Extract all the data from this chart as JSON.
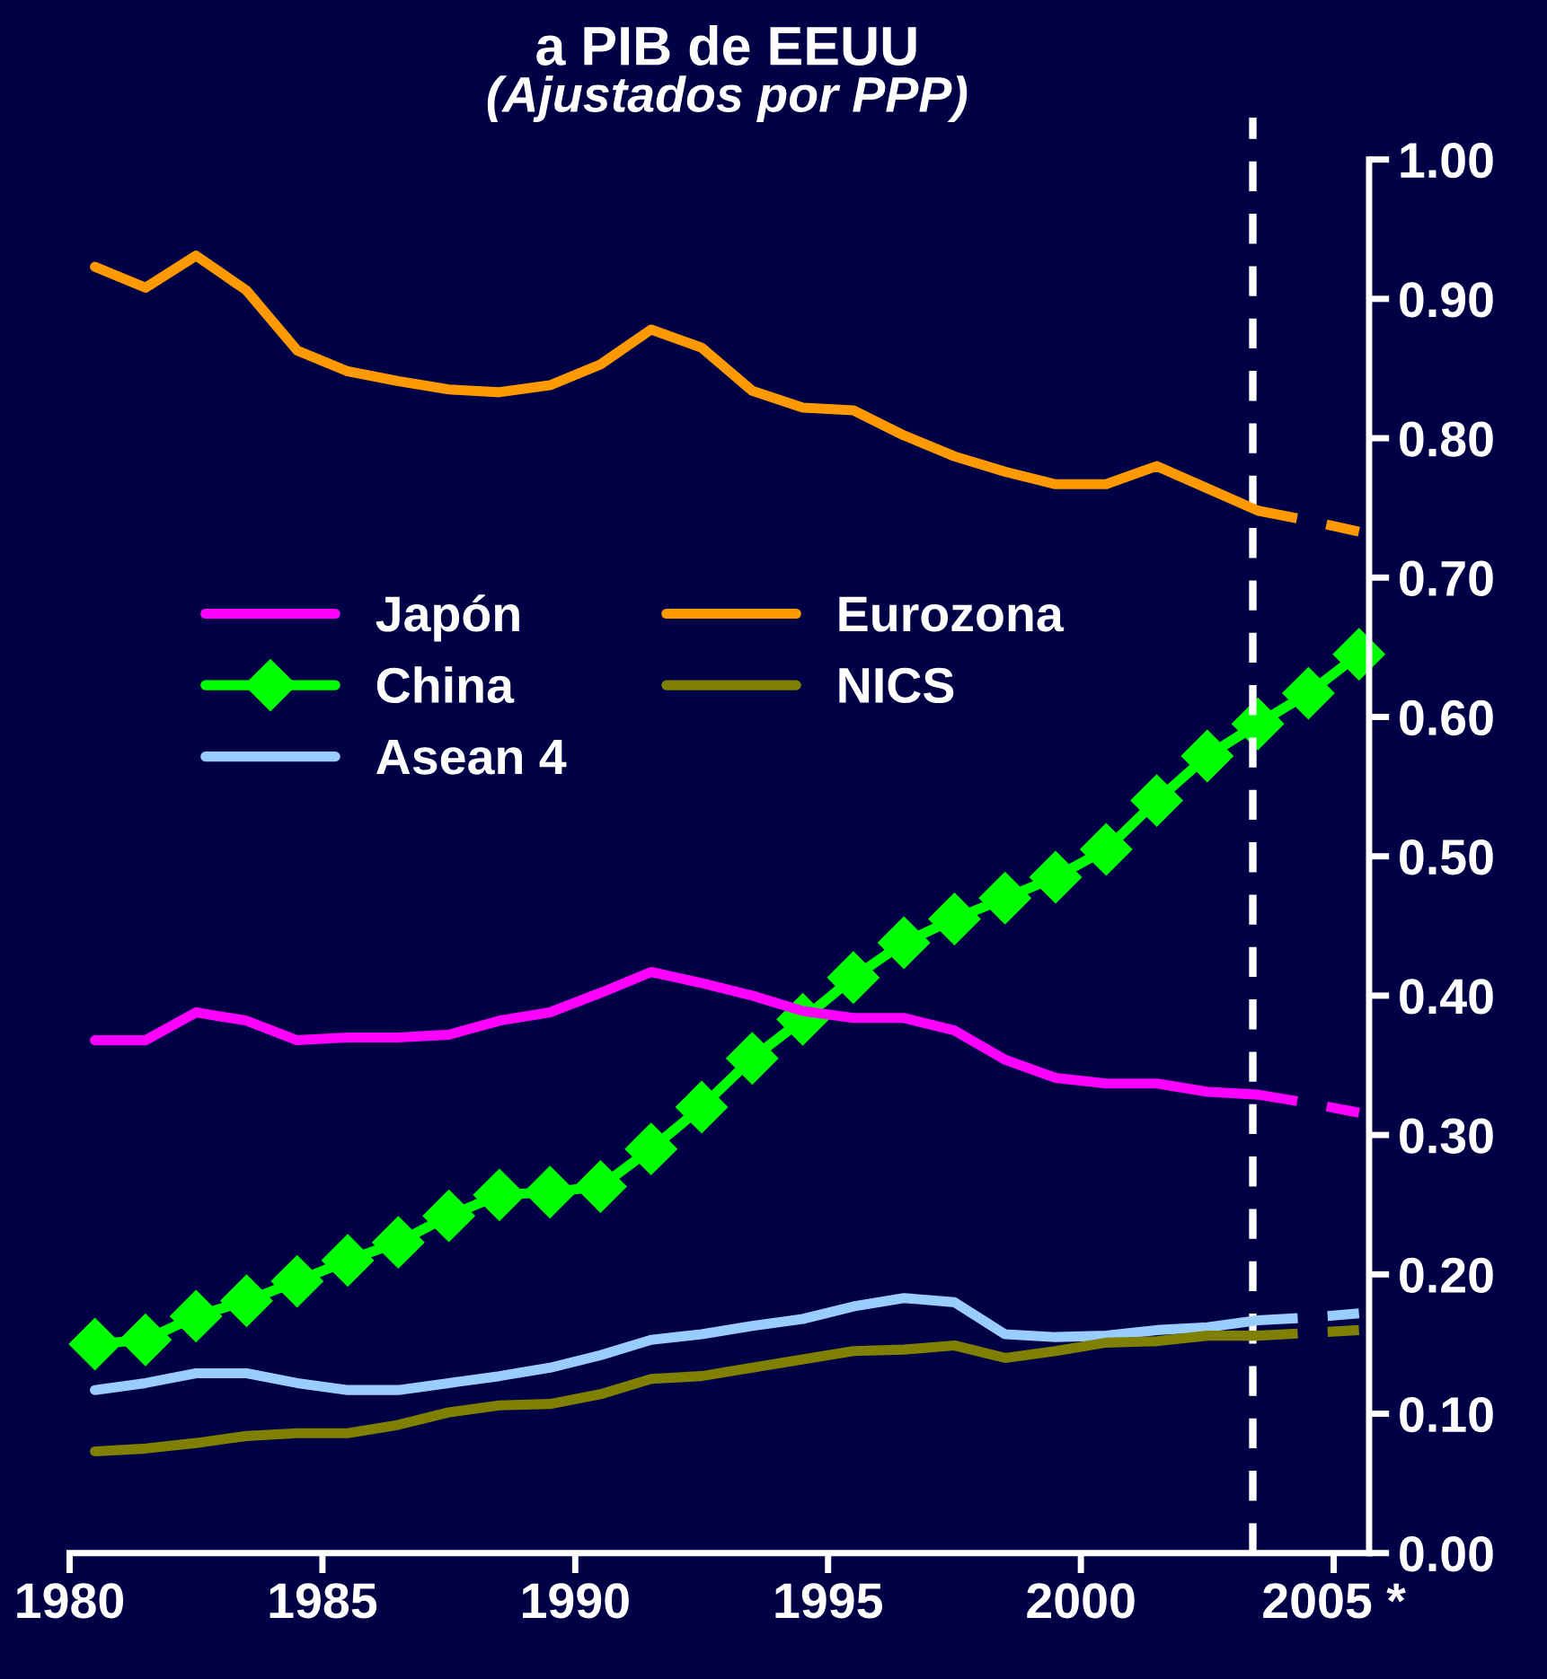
{
  "chart_data": {
    "type": "line",
    "title": "a PIB de EEUU",
    "subtitle": "(Ajustados por PPP)",
    "x": [
      1980.5,
      1981.5,
      1982.5,
      1983.5,
      1984.5,
      1985.5,
      1986.5,
      1987.5,
      1988.5,
      1989.5,
      1990.5,
      1991.5,
      1992.5,
      1993.5,
      1994.5,
      1995.5,
      1996.5,
      1997.5,
      1998.5,
      1999.5,
      2000.5,
      2001.5,
      2002.5,
      2003.5,
      2004.5,
      2005.5
    ],
    "series": [
      {
        "name": "Japón",
        "color": "#ff00ff",
        "values": [
          0.368,
          0.368,
          0.388,
          0.382,
          0.368,
          0.37,
          0.37,
          0.372,
          0.382,
          0.388,
          0.402,
          0.417,
          0.409,
          0.4,
          0.389,
          0.384,
          0.384,
          0.375,
          0.354,
          0.341,
          0.337,
          0.337,
          0.331,
          0.329,
          null,
          null
        ]
      },
      {
        "name": "China",
        "color": "#00ff00",
        "marker": "diamond",
        "values": [
          0.15,
          0.153,
          0.17,
          0.181,
          0.195,
          0.21,
          0.223,
          0.242,
          0.257,
          0.259,
          0.263,
          0.29,
          0.32,
          0.355,
          0.383,
          0.413,
          0.438,
          0.455,
          0.47,
          0.485,
          0.505,
          0.54,
          0.572,
          0.595,
          0.617,
          0.645
        ]
      },
      {
        "name": "Asean 4",
        "color": "#99ccff",
        "values": [
          0.117,
          0.122,
          0.129,
          0.129,
          0.122,
          0.117,
          0.117,
          0.122,
          0.127,
          0.133,
          0.142,
          0.153,
          0.157,
          0.163,
          0.168,
          0.177,
          0.183,
          0.18,
          0.157,
          0.155,
          0.156,
          0.16,
          0.162,
          0.167,
          null,
          null
        ]
      },
      {
        "name": "Eurozona",
        "color": "#ff9900",
        "values": [
          0.923,
          0.908,
          0.931,
          0.906,
          0.863,
          0.848,
          0.841,
          0.835,
          0.833,
          0.838,
          0.853,
          0.878,
          0.865,
          0.834,
          0.822,
          0.82,
          0.802,
          0.787,
          0.776,
          0.767,
          0.767,
          0.78,
          0.764,
          0.748,
          null,
          null
        ]
      },
      {
        "name": "NICS",
        "color": "#808000",
        "values": [
          0.073,
          0.075,
          0.079,
          0.084,
          0.086,
          0.086,
          0.092,
          0.101,
          0.106,
          0.107,
          0.114,
          0.125,
          0.127,
          0.133,
          0.139,
          0.145,
          0.146,
          0.149,
          0.14,
          0.145,
          0.151,
          0.152,
          0.156,
          0.156,
          null,
          null
        ]
      },
      {
        "color": "#ff00ff",
        "line_style": "dashed",
        "values": [
          null,
          null,
          null,
          null,
          null,
          null,
          null,
          null,
          null,
          null,
          null,
          null,
          null,
          null,
          null,
          null,
          null,
          null,
          null,
          null,
          null,
          null,
          null,
          0.329,
          0.323,
          0.316
        ]
      },
      {
        "color": "#99ccff",
        "line_style": "dashed",
        "values": [
          null,
          null,
          null,
          null,
          null,
          null,
          null,
          null,
          null,
          null,
          null,
          null,
          null,
          null,
          null,
          null,
          null,
          null,
          null,
          null,
          null,
          null,
          null,
          0.167,
          0.169,
          0.172
        ]
      },
      {
        "color": "#ff9900",
        "line_style": "dashed",
        "values": [
          null,
          null,
          null,
          null,
          null,
          null,
          null,
          null,
          null,
          null,
          null,
          null,
          null,
          null,
          null,
          null,
          null,
          null,
          null,
          null,
          null,
          null,
          null,
          0.748,
          0.741,
          0.733
        ]
      },
      {
        "color": "#808000",
        "line_style": "dashed",
        "values": [
          null,
          null,
          null,
          null,
          null,
          null,
          null,
          null,
          null,
          null,
          null,
          null,
          null,
          null,
          null,
          null,
          null,
          null,
          null,
          null,
          null,
          null,
          null,
          0.156,
          0.158,
          0.16
        ]
      }
    ],
    "xlim": [
      1980,
      2005.7
    ],
    "xticks": [
      1980,
      1985,
      1990,
      1995,
      2000,
      {
        "value": 2005,
        "label": "2005 *"
      }
    ],
    "ylim": [
      0,
      1.0
    ],
    "yticks": [
      {
        "value": 0,
        "label": "0.00"
      },
      {
        "value": 0.1,
        "label": "0.10"
      },
      {
        "value": 0.2,
        "label": "0.20"
      },
      {
        "value": 0.3,
        "label": "0.30"
      },
      {
        "value": 0.4,
        "label": "0.40"
      },
      {
        "value": 0.5,
        "label": "0.50"
      },
      {
        "value": 0.6,
        "label": "0.60"
      },
      {
        "value": 0.7,
        "label": "0.70"
      },
      {
        "value": 0.8,
        "label": "0.80"
      },
      {
        "value": 0.9,
        "label": "0.90"
      },
      {
        "value": 1.0,
        "label": "1.00"
      }
    ],
    "ref_lines": [
      {
        "axis": "x",
        "value": 2003.4,
        "color": "#ffffff",
        "line_style": "dashed"
      }
    ],
    "grid": false,
    "legend": "top left"
  }
}
